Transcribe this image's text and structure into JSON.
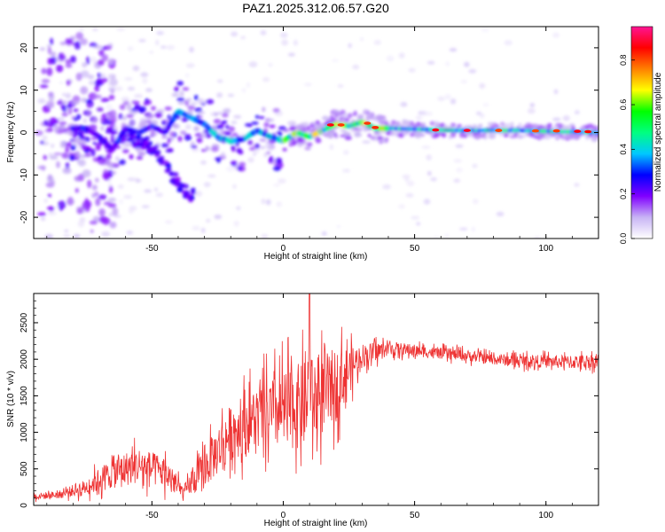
{
  "figure_title": "PAZ1.2025.312.06.57.G20",
  "colorbar": {
    "label": "Normalized spectral amplitude",
    "ticks": [
      "0.0",
      "0.2",
      "0.4",
      "0.6",
      "0.8"
    ],
    "tick_values": [
      0.0,
      0.2,
      0.4,
      0.6,
      0.8
    ],
    "range": [
      0,
      0.95
    ],
    "stops": [
      "#ffffff",
      "#c8b4f5",
      "#8000ff",
      "#0000ff",
      "#00c8ff",
      "#00ff80",
      "#00ff00",
      "#ffff00",
      "#ff8000",
      "#ff0000",
      "#ff1493"
    ]
  },
  "chart_data": [
    {
      "type": "heatmap",
      "title": "PAZ1.2025.312.06.57.G20",
      "xlabel": "Height of straight line (km)",
      "ylabel": "Frequency (Hz)",
      "xlim": [
        -95,
        120
      ],
      "ylim": [
        -25,
        25
      ],
      "x_ticks": [
        -50,
        0,
        50,
        100
      ],
      "x_tick_labels": [
        "-50",
        "0",
        "50",
        "100"
      ],
      "y_ticks": [
        -20,
        -10,
        0,
        10,
        20
      ],
      "y_tick_labels": [
        "-20",
        "-10",
        "0",
        "10",
        "20"
      ],
      "ridge": [
        {
          "x": -75,
          "f": 1.0
        },
        {
          "x": -70,
          "f": -1.0
        },
        {
          "x": -65,
          "f": -4.0
        },
        {
          "x": -60,
          "f": 1.0
        },
        {
          "x": -55,
          "f": 0.0
        },
        {
          "x": -50,
          "f": 1.5
        },
        {
          "x": -45,
          "f": 0.0
        },
        {
          "x": -40,
          "f": 5.0
        },
        {
          "x": -35,
          "f": 3.5
        },
        {
          "x": -30,
          "f": 2.0
        },
        {
          "x": -25,
          "f": -1.0
        },
        {
          "x": -20,
          "f": -2.0
        },
        {
          "x": -15,
          "f": -1.5
        },
        {
          "x": -10,
          "f": 0.5
        },
        {
          "x": -5,
          "f": -1.0
        },
        {
          "x": 0,
          "f": -2.0
        },
        {
          "x": 5,
          "f": 0.0
        },
        {
          "x": 10,
          "f": -1.0
        },
        {
          "x": 15,
          "f": 0.5
        },
        {
          "x": 20,
          "f": 2.0
        },
        {
          "x": 25,
          "f": 1.5
        },
        {
          "x": 30,
          "f": 2.5
        },
        {
          "x": 35,
          "f": 1.0
        },
        {
          "x": 40,
          "f": 1.0
        },
        {
          "x": 50,
          "f": 0.8
        },
        {
          "x": 60,
          "f": 0.6
        },
        {
          "x": 70,
          "f": 0.5
        },
        {
          "x": 80,
          "f": 0.5
        },
        {
          "x": 90,
          "f": 0.5
        },
        {
          "x": 100,
          "f": 0.3
        },
        {
          "x": 110,
          "f": 0.2
        },
        {
          "x": 120,
          "f": 0.0
        }
      ],
      "secondary_ridge": [
        {
          "x": -60,
          "f": -1.0
        },
        {
          "x": -50,
          "f": -3.0
        },
        {
          "x": -45,
          "f": -8.0
        },
        {
          "x": -40,
          "f": -12.0
        },
        {
          "x": -35,
          "f": -15.0
        }
      ],
      "peak_amplitude": 0.95
    },
    {
      "type": "line",
      "xlabel": "Height of straight line (km)",
      "ylabel": "SNR (10 * v/v)",
      "xlim": [
        -95,
        120
      ],
      "ylim": [
        0,
        2900
      ],
      "x_ticks": [
        -50,
        0,
        50,
        100
      ],
      "x_tick_labels": [
        "-50",
        "0",
        "50",
        "100"
      ],
      "y_ticks": [
        0,
        500,
        1000,
        1500,
        2000,
        2500
      ],
      "y_tick_labels": [
        "0",
        "500",
        "1000",
        "1500",
        "2000",
        "2500"
      ],
      "color": "#ee3333",
      "envelope": {
        "x": [
          -95,
          -85,
          -75,
          -65,
          -55,
          -45,
          -38,
          -30,
          -20,
          -10,
          0,
          10,
          20,
          30,
          40,
          50,
          60,
          70,
          80,
          90,
          100,
          110,
          120
        ],
        "mean": [
          120,
          150,
          250,
          450,
          550,
          450,
          180,
          500,
          1000,
          1200,
          1300,
          1400,
          1650,
          2050,
          2150,
          2120,
          2080,
          2050,
          2000,
          1980,
          1970,
          1960,
          1980
        ],
        "spread": [
          80,
          100,
          200,
          400,
          450,
          400,
          150,
          500,
          700,
          800,
          1000,
          1100,
          900,
          300,
          180,
          150,
          140,
          140,
          140,
          150,
          160,
          170,
          180
        ]
      },
      "max_value": 2900,
      "max_at_x": 10
    }
  ]
}
